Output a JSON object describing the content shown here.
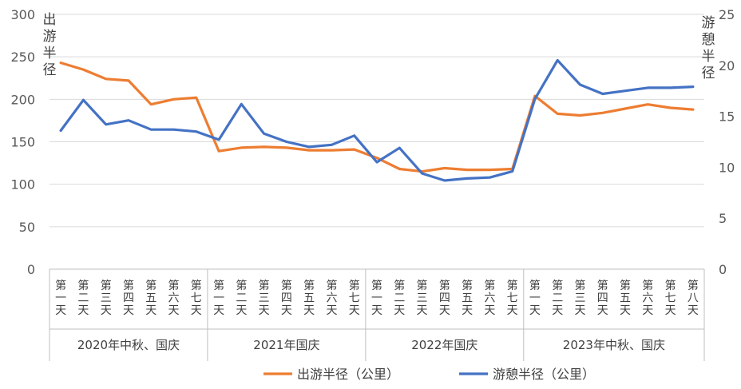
{
  "chart_data": {
    "type": "line",
    "left_axis": {
      "label": "出游半径",
      "ylim": [
        0,
        300
      ],
      "ticks": [
        "0",
        "50",
        "100",
        "150",
        "200",
        "250",
        "300"
      ]
    },
    "right_axis": {
      "label": "游憩半径",
      "ylim": [
        0,
        25
      ],
      "ticks": [
        "0",
        "5",
        "10",
        "15",
        "20",
        "25"
      ]
    },
    "groups": [
      {
        "label": "2020年中秋、国庆",
        "categories": [
          "第一天",
          "第二天",
          "第三天",
          "第四天",
          "第五天",
          "第六天",
          "第七天"
        ]
      },
      {
        "label": "2021年国庆",
        "categories": [
          "第一天",
          "第二天",
          "第三天",
          "第四天",
          "第五天",
          "第六天",
          "第七天"
        ]
      },
      {
        "label": "2022年国庆",
        "categories": [
          "第一天",
          "第二天",
          "第三天",
          "第四天",
          "第五天",
          "第六天",
          "第七天"
        ]
      },
      {
        "label": "2023年中秋、国庆",
        "categories": [
          "第一天",
          "第二天",
          "第三天",
          "第四天",
          "第五天",
          "第六天",
          "第七天",
          "第八天"
        ]
      }
    ],
    "series": [
      {
        "name": "出游半径（公里）",
        "axis": "left",
        "color": "#ED7D31",
        "values": [
          243,
          235,
          224,
          222,
          194,
          200,
          202,
          139,
          143,
          144,
          143,
          140,
          140,
          141,
          131,
          118,
          115,
          119,
          117,
          117,
          118,
          204,
          183,
          181,
          184,
          189,
          194,
          190,
          188
        ]
      },
      {
        "name": "游憩半径（公里）",
        "axis": "right",
        "color": "#4472C4",
        "values": [
          13.6,
          16.6,
          14.2,
          14.6,
          13.7,
          13.7,
          13.5,
          12.7,
          16.2,
          13.3,
          12.5,
          12.0,
          12.2,
          13.1,
          10.5,
          11.9,
          9.4,
          8.7,
          8.9,
          9.0,
          9.6,
          16.7,
          20.5,
          18.1,
          17.2,
          17.5,
          17.8,
          17.8,
          17.9
        ]
      }
    ]
  }
}
